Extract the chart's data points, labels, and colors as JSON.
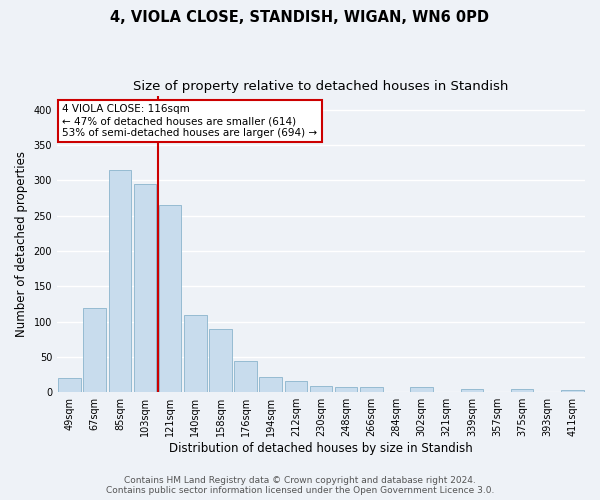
{
  "title": "4, VIOLA CLOSE, STANDISH, WIGAN, WN6 0PD",
  "subtitle": "Size of property relative to detached houses in Standish",
  "xlabel": "Distribution of detached houses by size in Standish",
  "ylabel": "Number of detached properties",
  "bar_labels": [
    "49sqm",
    "67sqm",
    "85sqm",
    "103sqm",
    "121sqm",
    "140sqm",
    "158sqm",
    "176sqm",
    "194sqm",
    "212sqm",
    "230sqm",
    "248sqm",
    "266sqm",
    "284sqm",
    "302sqm",
    "321sqm",
    "339sqm",
    "357sqm",
    "375sqm",
    "393sqm",
    "411sqm"
  ],
  "bar_values": [
    20,
    119,
    315,
    295,
    265,
    109,
    89,
    44,
    21,
    16,
    9,
    7,
    7,
    0,
    7,
    0,
    4,
    0,
    5,
    0,
    3
  ],
  "bar_color": "#c8dced",
  "bar_edge_color": "#8ab4cc",
  "vline_color": "#cc0000",
  "annotation_title": "4 VIOLA CLOSE: 116sqm",
  "annotation_line1": "← 47% of detached houses are smaller (614)",
  "annotation_line2": "53% of semi-detached houses are larger (694) →",
  "annotation_box_facecolor": "#ffffff",
  "annotation_box_edgecolor": "#cc0000",
  "ylim": [
    0,
    420
  ],
  "yticks": [
    0,
    50,
    100,
    150,
    200,
    250,
    300,
    350,
    400
  ],
  "footer1": "Contains HM Land Registry data © Crown copyright and database right 2024.",
  "footer2": "Contains public sector information licensed under the Open Government Licence 3.0.",
  "bg_color": "#eef2f7",
  "plot_bg_color": "#eef2f7",
  "grid_color": "#ffffff",
  "title_fontsize": 10.5,
  "subtitle_fontsize": 9.5,
  "axis_label_fontsize": 8.5,
  "tick_fontsize": 7,
  "annotation_fontsize": 7.5,
  "footer_fontsize": 6.5
}
